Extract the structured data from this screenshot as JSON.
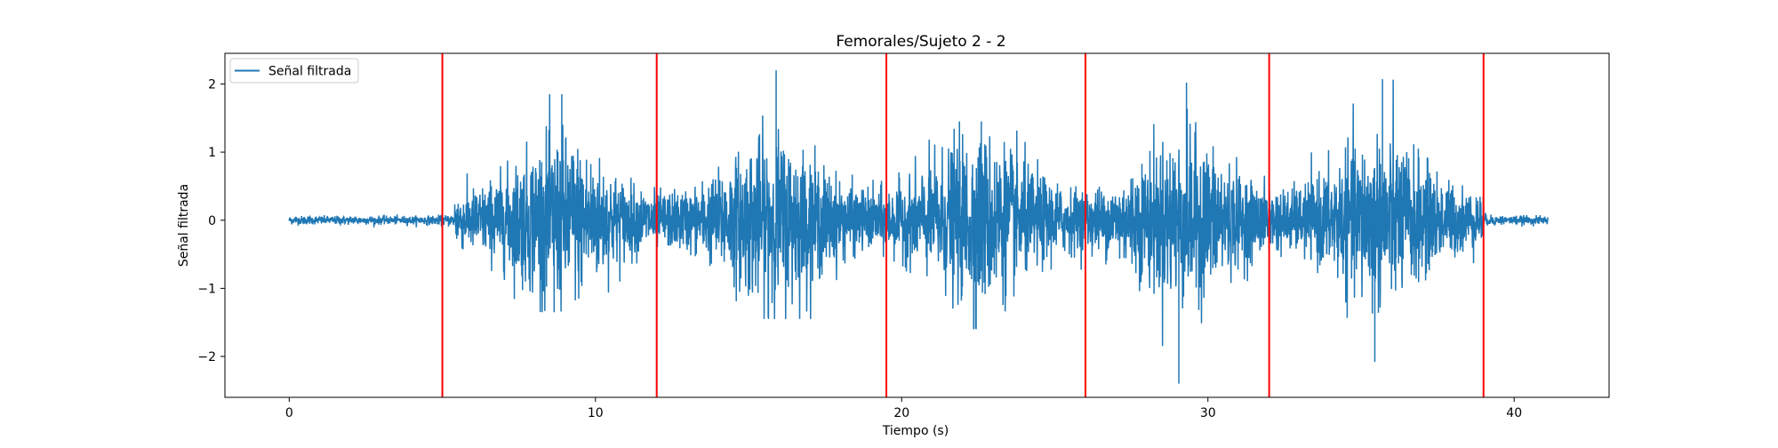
{
  "chart_data": {
    "type": "line",
    "title": "Femorales/Sujeto 2 - 2",
    "xlabel": "Tiempo (s)",
    "ylabel": "Señal filtrada",
    "xlim": [
      -2.1,
      43.1
    ],
    "ylim": [
      -2.6,
      2.45
    ],
    "x_ticks": [
      0,
      10,
      20,
      30,
      40
    ],
    "y_ticks": [
      -2,
      -1,
      0,
      1,
      2
    ],
    "x_tick_labels": [
      "0",
      "10",
      "20",
      "30",
      "40"
    ],
    "y_tick_labels": [
      "−2",
      "−1",
      "0",
      "1",
      "2"
    ],
    "legend_position": "top-left",
    "grid": false,
    "series": [
      {
        "name": "Señal filtrada",
        "color": "#1f77b4",
        "x_start": 0,
        "x_end": 41.1,
        "baseline_amplitude": 0.03,
        "bursts": [
          {
            "center": 8.8,
            "peak": 1.85,
            "trough": -1.35,
            "width": 1.3
          },
          {
            "center": 15.8,
            "peak": 2.2,
            "trough": -1.45,
            "width": 1.3
          },
          {
            "center": 22.5,
            "peak": 1.45,
            "trough": -1.6,
            "width": 1.4
          },
          {
            "center": 29.2,
            "peak": 2.02,
            "trough": -2.4,
            "width": 1.3
          },
          {
            "center": 35.6,
            "peak": 2.07,
            "trough": -2.08,
            "width": 1.3
          }
        ]
      }
    ],
    "vertical_lines": {
      "color": "#ff0000",
      "x": [
        5.0,
        12.0,
        19.5,
        26.0,
        32.0,
        39.0
      ]
    }
  }
}
